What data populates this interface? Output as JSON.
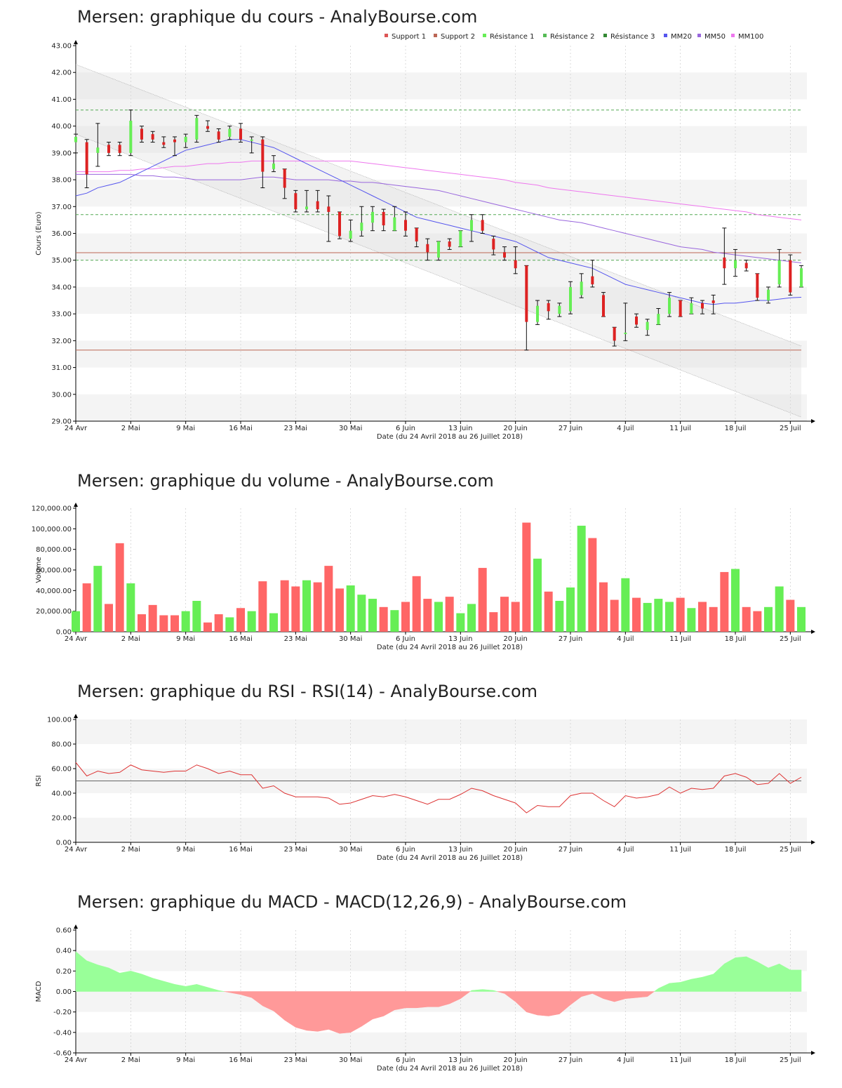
{
  "colors": {
    "bull": "#66ee55",
    "bear": "#dd2222",
    "support": "#bb6655",
    "resistance": "#55aa55",
    "mm20": "#5555ee",
    "mm50": "#9966dd",
    "mm100": "#ee77ee",
    "rsi": "#dd3333",
    "macd_pos": "#99ff99",
    "macd_neg": "#ff9999",
    "band": "#eeeeee"
  },
  "shared": {
    "date_label": "Date (du 24 Avril 2018 au 26 Juillet 2018)",
    "x_ticks": [
      {
        "label": "24 Avr",
        "i": 0
      },
      {
        "label": "2 Mai",
        "i": 5
      },
      {
        "label": "9 Mai",
        "i": 10
      },
      {
        "label": "16 Mai",
        "i": 15
      },
      {
        "label": "23 Mai",
        "i": 20
      },
      {
        "label": "30 Mai",
        "i": 25
      },
      {
        "label": "6 Juin",
        "i": 30
      },
      {
        "label": "13 Juin",
        "i": 35
      },
      {
        "label": "20 Juin",
        "i": 40
      },
      {
        "label": "27 Juin",
        "i": 45
      },
      {
        "label": "4 Juil",
        "i": 50
      },
      {
        "label": "11 Juil",
        "i": 55
      },
      {
        "label": "18 Juil",
        "i": 60
      },
      {
        "label": "25 Juil",
        "i": 65
      }
    ]
  },
  "chart_data": [
    {
      "type": "candlestick",
      "title": "Mersen: graphique du cours - AnalyBourse.com",
      "ylabel": "Cours (Euro)",
      "xlabel": "Date (du 24 Avril 2018 au 26 Juillet 2018)",
      "ylim": [
        29,
        43
      ],
      "yticks": [
        "29.00",
        "30.00",
        "31.00",
        "32.00",
        "33.00",
        "34.00",
        "35.00",
        "36.00",
        "37.00",
        "38.00",
        "39.00",
        "40.00",
        "41.00",
        "42.00",
        "43.00"
      ],
      "legend": [
        "Support 1",
        "Support 2",
        "Résistance 1",
        "Résistance 2",
        "Résistance 3",
        "MM20",
        "MM50",
        "MM100"
      ],
      "legend_colors": [
        "#dd5555",
        "#bb6655",
        "#66ee55",
        "#55bb55",
        "#338833",
        "#5555ee",
        "#9966dd",
        "#ee77ee"
      ],
      "support": [
        35.28,
        31.65
      ],
      "resistance": [
        35.0,
        36.7,
        40.6
      ],
      "channel": {
        "upper": [
          42.3,
          31.8
        ],
        "lower": [
          39.7,
          29.15
        ]
      },
      "candles": [
        {
          "o": 39.4,
          "h": 39.7,
          "l": 39.0,
          "c": 39.6
        },
        {
          "o": 39.4,
          "h": 39.5,
          "l": 37.7,
          "c": 38.2
        },
        {
          "o": 39.0,
          "h": 40.1,
          "l": 38.5,
          "c": 39.2
        },
        {
          "o": 39.3,
          "h": 39.4,
          "l": 38.9,
          "c": 39.0
        },
        {
          "o": 39.3,
          "h": 39.4,
          "l": 38.9,
          "c": 39.0
        },
        {
          "o": 39.0,
          "h": 40.6,
          "l": 38.9,
          "c": 40.2
        },
        {
          "o": 39.9,
          "h": 40.0,
          "l": 39.4,
          "c": 39.5
        },
        {
          "o": 39.7,
          "h": 39.8,
          "l": 39.4,
          "c": 39.5
        },
        {
          "o": 39.4,
          "h": 39.6,
          "l": 39.2,
          "c": 39.3
        },
        {
          "o": 39.5,
          "h": 39.6,
          "l": 38.9,
          "c": 39.4
        },
        {
          "o": 39.4,
          "h": 39.7,
          "l": 39.2,
          "c": 39.6
        },
        {
          "o": 39.5,
          "h": 40.4,
          "l": 39.4,
          "c": 40.3
        },
        {
          "o": 40.0,
          "h": 40.2,
          "l": 39.8,
          "c": 39.9
        },
        {
          "o": 39.8,
          "h": 39.9,
          "l": 39.4,
          "c": 39.5
        },
        {
          "o": 39.6,
          "h": 40.0,
          "l": 39.5,
          "c": 39.9
        },
        {
          "o": 39.9,
          "h": 40.1,
          "l": 39.4,
          "c": 39.5
        },
        {
          "o": 39.5,
          "h": 39.6,
          "l": 39.0,
          "c": 39.5
        },
        {
          "o": 39.5,
          "h": 39.6,
          "l": 37.7,
          "c": 38.3
        },
        {
          "o": 38.4,
          "h": 38.9,
          "l": 38.3,
          "c": 38.6
        },
        {
          "o": 38.4,
          "h": 38.4,
          "l": 37.3,
          "c": 37.7
        },
        {
          "o": 37.5,
          "h": 37.6,
          "l": 36.8,
          "c": 36.9
        },
        {
          "o": 36.9,
          "h": 37.6,
          "l": 36.8,
          "c": 37.0
        },
        {
          "o": 37.2,
          "h": 37.6,
          "l": 36.8,
          "c": 36.9
        },
        {
          "o": 37.0,
          "h": 37.4,
          "l": 35.7,
          "c": 36.8
        },
        {
          "o": 36.8,
          "h": 36.8,
          "l": 35.8,
          "c": 35.9
        },
        {
          "o": 35.8,
          "h": 36.5,
          "l": 35.7,
          "c": 36.1
        },
        {
          "o": 36.1,
          "h": 37.0,
          "l": 35.9,
          "c": 36.4
        },
        {
          "o": 36.4,
          "h": 37.0,
          "l": 36.1,
          "c": 36.8
        },
        {
          "o": 36.8,
          "h": 36.9,
          "l": 36.1,
          "c": 36.3
        },
        {
          "o": 36.1,
          "h": 37.0,
          "l": 36.1,
          "c": 36.6
        },
        {
          "o": 36.5,
          "h": 36.8,
          "l": 35.9,
          "c": 36.1
        },
        {
          "o": 36.2,
          "h": 36.2,
          "l": 35.5,
          "c": 35.7
        },
        {
          "o": 35.6,
          "h": 35.8,
          "l": 35.0,
          "c": 35.3
        },
        {
          "o": 35.1,
          "h": 35.7,
          "l": 35.0,
          "c": 35.7
        },
        {
          "o": 35.7,
          "h": 35.8,
          "l": 35.4,
          "c": 35.5
        },
        {
          "o": 35.5,
          "h": 36.1,
          "l": 35.5,
          "c": 36.1
        },
        {
          "o": 36.1,
          "h": 36.7,
          "l": 35.7,
          "c": 36.5
        },
        {
          "o": 36.5,
          "h": 36.7,
          "l": 36.0,
          "c": 36.1
        },
        {
          "o": 35.8,
          "h": 35.9,
          "l": 35.2,
          "c": 35.4
        },
        {
          "o": 35.3,
          "h": 35.5,
          "l": 35.0,
          "c": 35.1
        },
        {
          "o": 35.0,
          "h": 35.5,
          "l": 34.5,
          "c": 34.7
        },
        {
          "o": 34.8,
          "h": 34.8,
          "l": 31.65,
          "c": 32.7
        },
        {
          "o": 32.7,
          "h": 33.5,
          "l": 32.6,
          "c": 33.3
        },
        {
          "o": 33.4,
          "h": 33.5,
          "l": 32.8,
          "c": 33.1
        },
        {
          "o": 33.0,
          "h": 33.4,
          "l": 32.9,
          "c": 33.3
        },
        {
          "o": 33.1,
          "h": 34.2,
          "l": 33.0,
          "c": 34.0
        },
        {
          "o": 33.7,
          "h": 34.5,
          "l": 33.6,
          "c": 34.2
        },
        {
          "o": 34.4,
          "h": 35.0,
          "l": 34.0,
          "c": 34.1
        },
        {
          "o": 33.7,
          "h": 33.8,
          "l": 32.9,
          "c": 32.9
        },
        {
          "o": 32.5,
          "h": 32.5,
          "l": 31.8,
          "c": 32.0
        },
        {
          "o": 32.3,
          "h": 33.4,
          "l": 32.0,
          "c": 32.3
        },
        {
          "o": 32.9,
          "h": 33.0,
          "l": 32.5,
          "c": 32.6
        },
        {
          "o": 32.4,
          "h": 32.8,
          "l": 32.2,
          "c": 32.7
        },
        {
          "o": 32.6,
          "h": 33.2,
          "l": 32.6,
          "c": 33.0
        },
        {
          "o": 33.0,
          "h": 33.8,
          "l": 32.9,
          "c": 33.6
        },
        {
          "o": 33.5,
          "h": 33.5,
          "l": 32.9,
          "c": 32.9
        },
        {
          "o": 33.0,
          "h": 33.6,
          "l": 33.0,
          "c": 33.4
        },
        {
          "o": 33.4,
          "h": 33.5,
          "l": 33.0,
          "c": 33.2
        },
        {
          "o": 33.5,
          "h": 33.7,
          "l": 33.0,
          "c": 33.4
        },
        {
          "o": 35.1,
          "h": 36.2,
          "l": 34.1,
          "c": 34.7
        },
        {
          "o": 34.7,
          "h": 35.4,
          "l": 34.4,
          "c": 35.0
        },
        {
          "o": 34.9,
          "h": 35.0,
          "l": 34.6,
          "c": 34.7
        },
        {
          "o": 34.5,
          "h": 34.5,
          "l": 33.5,
          "c": 33.6
        },
        {
          "o": 33.5,
          "h": 34.0,
          "l": 33.4,
          "c": 33.9
        },
        {
          "o": 34.1,
          "h": 35.4,
          "l": 34.0,
          "c": 35.0
        },
        {
          "o": 35.0,
          "h": 35.2,
          "l": 33.7,
          "c": 33.8
        },
        {
          "o": 34.0,
          "h": 34.8,
          "l": 34.0,
          "c": 34.7
        }
      ],
      "mm20": [
        37.4,
        37.5,
        37.7,
        37.8,
        37.9,
        38.1,
        38.3,
        38.5,
        38.7,
        38.9,
        39.1,
        39.2,
        39.3,
        39.4,
        39.5,
        39.5,
        39.4,
        39.3,
        39.2,
        39.0,
        38.8,
        38.6,
        38.4,
        38.2,
        38.0,
        37.8,
        37.6,
        37.4,
        37.2,
        37.0,
        36.8,
        36.6,
        36.5,
        36.4,
        36.3,
        36.2,
        36.1,
        36.0,
        35.9,
        35.8,
        35.7,
        35.5,
        35.3,
        35.1,
        35.0,
        34.9,
        34.8,
        34.7,
        34.5,
        34.3,
        34.1,
        34.0,
        33.9,
        33.8,
        33.7,
        33.6,
        33.5,
        33.4,
        33.35,
        33.4,
        33.4,
        33.45,
        33.5,
        33.5,
        33.55,
        33.6,
        33.62
      ],
      "mm50": [
        38.2,
        38.2,
        38.2,
        38.2,
        38.2,
        38.2,
        38.15,
        38.15,
        38.1,
        38.1,
        38.05,
        38.0,
        38.0,
        38.0,
        38.0,
        38.0,
        38.05,
        38.1,
        38.1,
        38.05,
        38.0,
        38.0,
        38.0,
        38.0,
        37.95,
        37.95,
        37.9,
        37.9,
        37.85,
        37.8,
        37.75,
        37.7,
        37.65,
        37.6,
        37.5,
        37.4,
        37.3,
        37.2,
        37.1,
        37.0,
        36.9,
        36.8,
        36.7,
        36.6,
        36.5,
        36.45,
        36.4,
        36.3,
        36.2,
        36.1,
        36.0,
        35.9,
        35.8,
        35.7,
        35.6,
        35.5,
        35.45,
        35.4,
        35.3,
        35.25,
        35.2,
        35.15,
        35.1,
        35.05,
        35.0,
        34.95,
        34.9
      ],
      "mm100": [
        38.3,
        38.3,
        38.3,
        38.3,
        38.35,
        38.35,
        38.4,
        38.4,
        38.45,
        38.5,
        38.5,
        38.55,
        38.6,
        38.6,
        38.65,
        38.65,
        38.7,
        38.7,
        38.7,
        38.7,
        38.7,
        38.7,
        38.7,
        38.7,
        38.7,
        38.7,
        38.65,
        38.6,
        38.55,
        38.5,
        38.45,
        38.4,
        38.35,
        38.3,
        38.25,
        38.2,
        38.15,
        38.1,
        38.05,
        38.0,
        37.9,
        37.85,
        37.8,
        37.7,
        37.65,
        37.6,
        37.55,
        37.5,
        37.45,
        37.4,
        37.35,
        37.3,
        37.25,
        37.2,
        37.15,
        37.1,
        37.05,
        37.0,
        36.95,
        36.9,
        36.85,
        36.8,
        36.7,
        36.65,
        36.6,
        36.55,
        36.5
      ]
    },
    {
      "type": "bar",
      "title": "Mersen: graphique du volume - AnalyBourse.com",
      "ylabel": "Volume",
      "xlabel": "Date (du 24 Avril 2018 au 26 Juillet 2018)",
      "ylim": [
        0,
        120000
      ],
      "yticks": [
        "0.00",
        "20,000.00",
        "40,000.00",
        "60,000.00",
        "80,000.00",
        "100,000.00",
        "120,000.00"
      ],
      "values": [
        20000,
        47000,
        64000,
        27000,
        86000,
        47000,
        17000,
        26000,
        16000,
        16000,
        20000,
        30000,
        9000,
        17000,
        14000,
        23000,
        20000,
        49000,
        18000,
        50000,
        44000,
        50000,
        48000,
        64000,
        42000,
        45000,
        36000,
        32000,
        24000,
        21000,
        29000,
        54000,
        32000,
        29000,
        34000,
        18000,
        27000,
        62000,
        19000,
        34000,
        29000,
        106000,
        71000,
        39000,
        30000,
        43000,
        103000,
        91000,
        48000,
        31000,
        52000,
        33000,
        28000,
        32000,
        29000,
        33000,
        23000,
        29000,
        24000,
        58000,
        61000,
        24000,
        20000,
        24000,
        44000,
        31000,
        24000
      ]
    },
    {
      "type": "line",
      "title": "Mersen: graphique du RSI - RSI(14) - AnalyBourse.com",
      "ylabel": "RSI",
      "xlabel": "Date (du 24 Avril 2018 au 26 Juillet 2018)",
      "ylim": [
        0,
        100
      ],
      "yticks": [
        "0.00",
        "20.00",
        "40.00",
        "60.00",
        "80.00",
        "100.00"
      ],
      "reference": 50,
      "values": [
        65,
        54,
        58,
        56,
        57,
        63,
        59,
        58,
        57,
        58,
        58,
        63,
        60,
        56,
        58,
        55,
        55,
        44,
        46,
        40,
        37,
        37,
        37,
        36,
        31,
        32,
        35,
        38,
        37,
        39,
        37,
        34,
        31,
        35,
        35,
        39,
        44,
        42,
        38,
        35,
        32,
        24,
        30,
        29,
        29,
        38,
        40,
        40,
        34,
        29,
        38,
        36,
        37,
        39,
        45,
        40,
        44,
        43,
        44,
        54,
        56,
        53,
        47,
        48,
        56,
        48,
        53
      ]
    },
    {
      "type": "area",
      "title": "Mersen: graphique du MACD - MACD(12,26,9) - AnalyBourse.com",
      "ylabel": "MACD",
      "xlabel": "Date (du 24 Avril 2018 au 26 Juillet 2018)",
      "ylim": [
        -0.6,
        0.6
      ],
      "yticks": [
        "-0.60",
        "-0.40",
        "-0.20",
        "0.00",
        "0.20",
        "0.40",
        "0.60"
      ],
      "values": [
        0.39,
        0.3,
        0.26,
        0.23,
        0.18,
        0.2,
        0.17,
        0.13,
        0.1,
        0.07,
        0.05,
        0.07,
        0.04,
        0.01,
        -0.01,
        -0.03,
        -0.06,
        -0.14,
        -0.19,
        -0.28,
        -0.35,
        -0.38,
        -0.39,
        -0.37,
        -0.41,
        -0.4,
        -0.34,
        -0.27,
        -0.24,
        -0.18,
        -0.16,
        -0.16,
        -0.15,
        -0.15,
        -0.12,
        -0.07,
        0.01,
        0.02,
        0.01,
        -0.02,
        -0.1,
        -0.2,
        -0.23,
        -0.24,
        -0.22,
        -0.13,
        -0.05,
        -0.02,
        -0.07,
        -0.1,
        -0.07,
        -0.06,
        -0.05,
        0.03,
        0.08,
        0.09,
        0.12,
        0.14,
        0.17,
        0.27,
        0.33,
        0.34,
        0.29,
        0.23,
        0.27,
        0.21,
        0.21
      ]
    }
  ]
}
